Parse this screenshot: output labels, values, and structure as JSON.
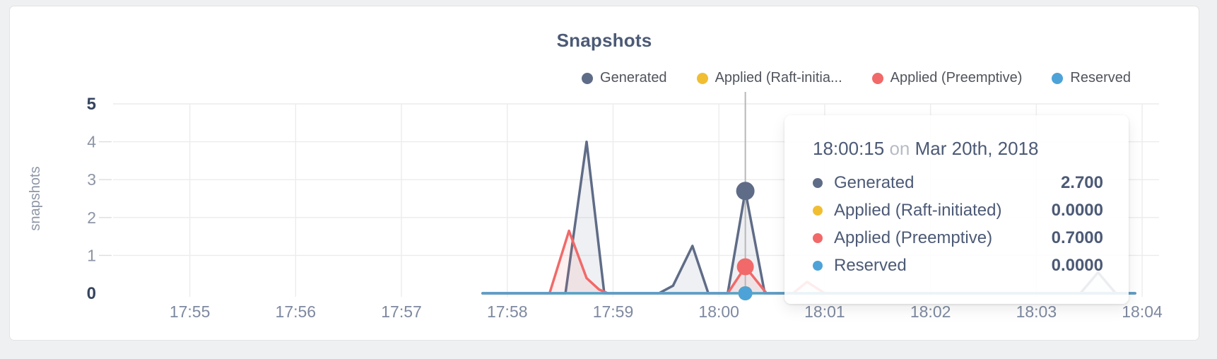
{
  "panel": {
    "title": "Snapshots"
  },
  "legend": {
    "items": [
      {
        "label": "Generated",
        "color": "#5f6c87"
      },
      {
        "label": "Applied (Raft-initia...",
        "color": "#f1be32"
      },
      {
        "label": "Applied (Preemptive)",
        "color": "#f16969"
      },
      {
        "label": "Reserved",
        "color": "#4da3d7"
      }
    ]
  },
  "tooltip": {
    "time": "18:00:15",
    "conj": "on",
    "date": "Mar 20th, 2018",
    "rows": [
      {
        "label": "Generated",
        "value": "2.700",
        "color": "#5f6c87"
      },
      {
        "label": "Applied (Raft-initiated)",
        "value": "0.0000",
        "color": "#f1be32"
      },
      {
        "label": "Applied (Preemptive)",
        "value": "0.7000",
        "color": "#f16969"
      },
      {
        "label": "Reserved",
        "value": "0.0000",
        "color": "#4da3d7"
      }
    ]
  },
  "chart_data": {
    "type": "area",
    "title": "Snapshots",
    "xlabel": "",
    "ylabel": "snapshots",
    "ylim": [
      0,
      5
    ],
    "y_ticks": [
      0,
      1,
      2,
      3,
      4,
      5
    ],
    "x_ticks": [
      "17:55",
      "17:56",
      "17:57",
      "17:58",
      "17:59",
      "18:00",
      "18:01",
      "18:02",
      "18:03",
      "18:04"
    ],
    "grid": true,
    "legend_position": "top-right",
    "series": [
      {
        "name": "Generated",
        "color": "#5f6c87",
        "points": [
          [
            "17:57:46",
            0
          ],
          [
            "17:58:33",
            0
          ],
          [
            "17:58:45",
            4.0
          ],
          [
            "17:58:55",
            0
          ],
          [
            "17:59:26",
            0
          ],
          [
            "17:59:34",
            0.2
          ],
          [
            "17:59:45",
            1.25
          ],
          [
            "17:59:54",
            0
          ],
          [
            "18:00:05",
            0
          ],
          [
            "18:00:15",
            2.7
          ],
          [
            "18:00:26",
            0
          ],
          [
            "18:03:25",
            0
          ],
          [
            "18:03:35",
            0.55
          ],
          [
            "18:03:45",
            0
          ],
          [
            "18:03:56",
            0
          ]
        ]
      },
      {
        "name": "Applied (Raft-initiated)",
        "color": "#f1be32",
        "points": [
          [
            "17:57:46",
            0
          ],
          [
            "18:03:56",
            0
          ]
        ]
      },
      {
        "name": "Applied (Preemptive)",
        "color": "#f16969",
        "points": [
          [
            "17:57:46",
            0
          ],
          [
            "17:58:24",
            0
          ],
          [
            "17:58:35",
            1.65
          ],
          [
            "17:58:45",
            0.4
          ],
          [
            "17:58:52",
            0.1
          ],
          [
            "17:58:57",
            0
          ],
          [
            "18:00:05",
            0
          ],
          [
            "18:00:15",
            0.7
          ],
          [
            "18:00:27",
            0
          ],
          [
            "18:00:42",
            0
          ],
          [
            "18:00:50",
            0.3
          ],
          [
            "18:01:00",
            0
          ],
          [
            "18:03:56",
            0
          ]
        ]
      },
      {
        "name": "Reserved",
        "color": "#4da3d7",
        "points": [
          [
            "17:57:46",
            0
          ],
          [
            "18:03:56",
            0
          ]
        ]
      }
    ],
    "hover": {
      "time": "18:00:15",
      "date": "Mar 20th, 2018",
      "values": [
        2.7,
        0.0,
        0.7,
        0.0
      ],
      "dots": [
        {
          "series": 1,
          "value": 0,
          "r": 10
        },
        {
          "series": 0,
          "value": 2.7,
          "r": 13
        },
        {
          "series": 2,
          "value": 0.7,
          "r": 12
        },
        {
          "series": 3,
          "value": 0,
          "r": 10
        }
      ]
    }
  },
  "colors": {
    "title_text": "#4c5a76",
    "axis_label": "#7e89a0",
    "axis_minmax": "#36445f",
    "grid_line": "#ececec",
    "crosshair": "#b8b8b8",
    "card_border": "#e2e3e5",
    "page_bg": "#eff0f1"
  }
}
